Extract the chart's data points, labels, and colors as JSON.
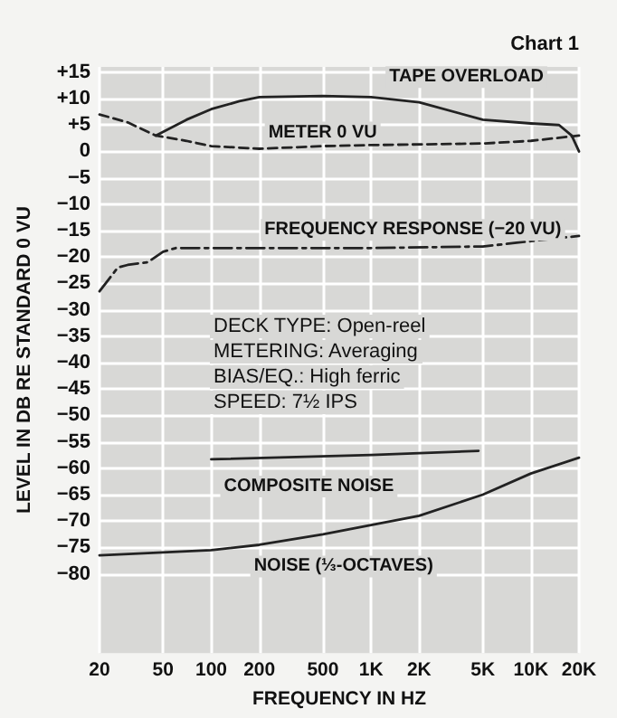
{
  "chart_data": {
    "type": "line",
    "title": "Chart 1",
    "xlabel": "FREQUENCY IN HZ",
    "ylabel": "LEVEL IN DB RE STANDARD 0 VU",
    "log": "x",
    "grid": true,
    "legend": false,
    "marker": "none",
    "xlim": [
      20,
      20000
    ],
    "xticks": [
      20,
      50,
      100,
      200,
      500,
      {
        "value": 1000,
        "label": "1K"
      },
      {
        "value": 2000,
        "label": "2K"
      },
      {
        "value": 5000,
        "label": "5K"
      },
      {
        "value": 10000,
        "label": "10K"
      },
      {
        "value": 20000,
        "label": "20K"
      }
    ],
    "ylim": [
      -95,
      16
    ],
    "yticks": [
      {
        "value": 15,
        "label": "+15"
      },
      {
        "value": 10,
        "label": "+10"
      },
      {
        "value": 5,
        "label": "+5"
      },
      0,
      {
        "value": -5,
        "label": "−5"
      },
      {
        "value": -10,
        "label": "−10"
      },
      {
        "value": -15,
        "label": "−15"
      },
      {
        "value": -20,
        "label": "−20"
      },
      {
        "value": -25,
        "label": "−25"
      },
      {
        "value": -30,
        "label": "−30"
      },
      {
        "value": -35,
        "label": "−35"
      },
      {
        "value": -40,
        "label": "−40"
      },
      {
        "value": -45,
        "label": "−45"
      },
      {
        "value": -50,
        "label": "−50"
      },
      {
        "value": -55,
        "label": "−55"
      },
      {
        "value": -60,
        "label": "−60"
      },
      {
        "value": -65,
        "label": "−65"
      },
      {
        "value": -70,
        "label": "−70"
      },
      {
        "value": -75,
        "label": "−75"
      },
      {
        "value": -80,
        "label": "−80"
      }
    ],
    "series": [
      {
        "name": "TAPE OVERLOAD",
        "color": "#222222",
        "line_style": "solid",
        "x": [
          45,
          70,
          100,
          150,
          200,
          500,
          1000,
          2000,
          5000,
          10000,
          15000,
          18000,
          20000
        ],
        "values": [
          3,
          6,
          8,
          9.5,
          10.3,
          10.5,
          10.3,
          9.3,
          6,
          5.3,
          5,
          3,
          0
        ]
      },
      {
        "name": "METER 0 VU",
        "color": "#222222",
        "line_style": "dashed",
        "x": [
          20,
          30,
          45,
          70,
          100,
          200,
          500,
          1000,
          5000,
          10000,
          20000
        ],
        "values": [
          7,
          5.5,
          3,
          2,
          1,
          0.5,
          1,
          1.2,
          1.5,
          2,
          3
        ]
      },
      {
        "name": "FREQUENCY RESPONSE (−20 VU)",
        "color": "#222222",
        "line_style": "dashdot",
        "x": [
          20,
          26,
          30,
          40,
          50,
          60,
          100,
          1000,
          5000,
          10000,
          20000
        ],
        "values": [
          -26.5,
          -22,
          -21.5,
          -21,
          -19,
          -18.3,
          -18.3,
          -18.3,
          -18,
          -17,
          -16
        ]
      },
      {
        "name": "COMPOSITE NOISE",
        "color": "#222222",
        "line_style": "solid",
        "x": [
          100,
          1000,
          4700
        ],
        "values": [
          -58.3,
          -57.5,
          -56.7
        ]
      },
      {
        "name": "NOISE (⅓-OCTAVES)",
        "color": "#222222",
        "line_style": "solid",
        "x": [
          20,
          100,
          200,
          500,
          2000,
          5000,
          10000,
          20000
        ],
        "values": [
          -76.5,
          -75.5,
          -74.5,
          -72.5,
          -69,
          -65,
          -61,
          -58
        ]
      }
    ],
    "annotations": [
      "DECK TYPE: Open-reel",
      "METERING: Averaging",
      "BIAS/EQ.: High ferric",
      "SPEED: 7½ IPS"
    ]
  }
}
